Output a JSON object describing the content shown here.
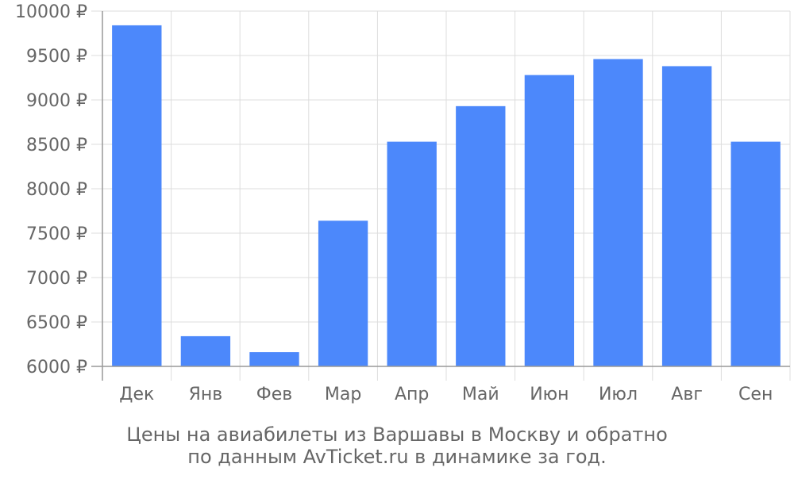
{
  "colors": {
    "bar": "#4c88fb",
    "grid": "#dddddd",
    "axis": "#999999",
    "text": "#666666"
  },
  "caption": {
    "line1": "Цены на авиабилеты из Варшавы в Москву и обратно",
    "line2": "по данным AvTicket.ru в динамике за год."
  },
  "chart_data": {
    "type": "bar",
    "categories": [
      "Дек",
      "Янв",
      "Фев",
      "Мар",
      "Апр",
      "Май",
      "Июн",
      "Июл",
      "Авг",
      "Сен"
    ],
    "values": [
      9840,
      6340,
      6160,
      7640,
      8530,
      8930,
      9280,
      9460,
      9380,
      8530
    ],
    "ylim": [
      6000,
      10000
    ],
    "y_ticks": [
      6000,
      6500,
      7000,
      7500,
      8000,
      8500,
      9000,
      9500,
      10000
    ],
    "y_tick_suffix": " ₽",
    "grid": true
  }
}
